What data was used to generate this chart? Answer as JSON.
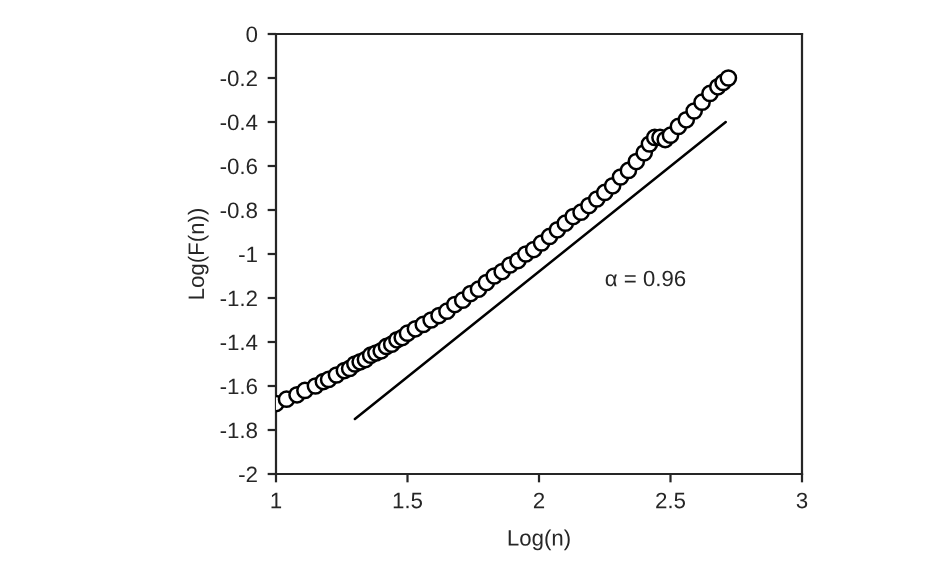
{
  "chart_data": {
    "type": "scatter",
    "xlabel": "Log(n)",
    "ylabel": "Log(F(n))",
    "xlim": [
      1,
      3
    ],
    "xticks": [
      1,
      1.5,
      2,
      2.5,
      3
    ],
    "ylim": [
      -2,
      0
    ],
    "yticks": [
      -2,
      -1.8,
      -1.6,
      -1.4,
      -1.2,
      -1,
      -0.8,
      -0.6,
      -0.4,
      -0.2,
      0
    ],
    "grid": false,
    "legend": false,
    "series": [
      {
        "marker": "circle",
        "color": "#000000",
        "x": [
          1.0,
          1.04,
          1.08,
          1.11,
          1.15,
          1.18,
          1.2,
          1.23,
          1.26,
          1.28,
          1.3,
          1.32,
          1.34,
          1.36,
          1.38,
          1.4,
          1.42,
          1.44,
          1.46,
          1.48,
          1.5,
          1.53,
          1.56,
          1.59,
          1.62,
          1.65,
          1.68,
          1.71,
          1.74,
          1.77,
          1.8,
          1.83,
          1.86,
          1.89,
          1.92,
          1.95,
          1.98,
          2.01,
          2.04,
          2.07,
          2.1,
          2.13,
          2.16,
          2.19,
          2.22,
          2.25,
          2.28,
          2.31,
          2.34,
          2.37,
          2.4,
          2.42,
          2.44,
          2.46,
          2.48,
          2.5,
          2.53,
          2.56,
          2.59,
          2.62,
          2.65,
          2.68,
          2.7,
          2.72
        ],
        "values": [
          -1.68,
          -1.66,
          -1.64,
          -1.62,
          -1.6,
          -1.58,
          -1.57,
          -1.55,
          -1.53,
          -1.52,
          -1.5,
          -1.49,
          -1.48,
          -1.46,
          -1.45,
          -1.44,
          -1.42,
          -1.41,
          -1.39,
          -1.38,
          -1.36,
          -1.34,
          -1.32,
          -1.3,
          -1.28,
          -1.26,
          -1.23,
          -1.21,
          -1.18,
          -1.16,
          -1.13,
          -1.1,
          -1.08,
          -1.05,
          -1.03,
          -1.0,
          -0.98,
          -0.95,
          -0.92,
          -0.89,
          -0.86,
          -0.83,
          -0.81,
          -0.78,
          -0.75,
          -0.72,
          -0.69,
          -0.65,
          -0.62,
          -0.58,
          -0.54,
          -0.5,
          -0.47,
          -0.47,
          -0.48,
          -0.46,
          -0.42,
          -0.39,
          -0.35,
          -0.31,
          -0.27,
          -0.24,
          -0.22,
          -0.2
        ]
      },
      {
        "type": "line",
        "marker": "none",
        "line_style": "solid",
        "color": "#000000",
        "x": [
          1.3,
          2.71
        ],
        "values": [
          -1.75,
          -0.4
        ]
      }
    ],
    "annotations": [
      "α = 0.96"
    ]
  }
}
